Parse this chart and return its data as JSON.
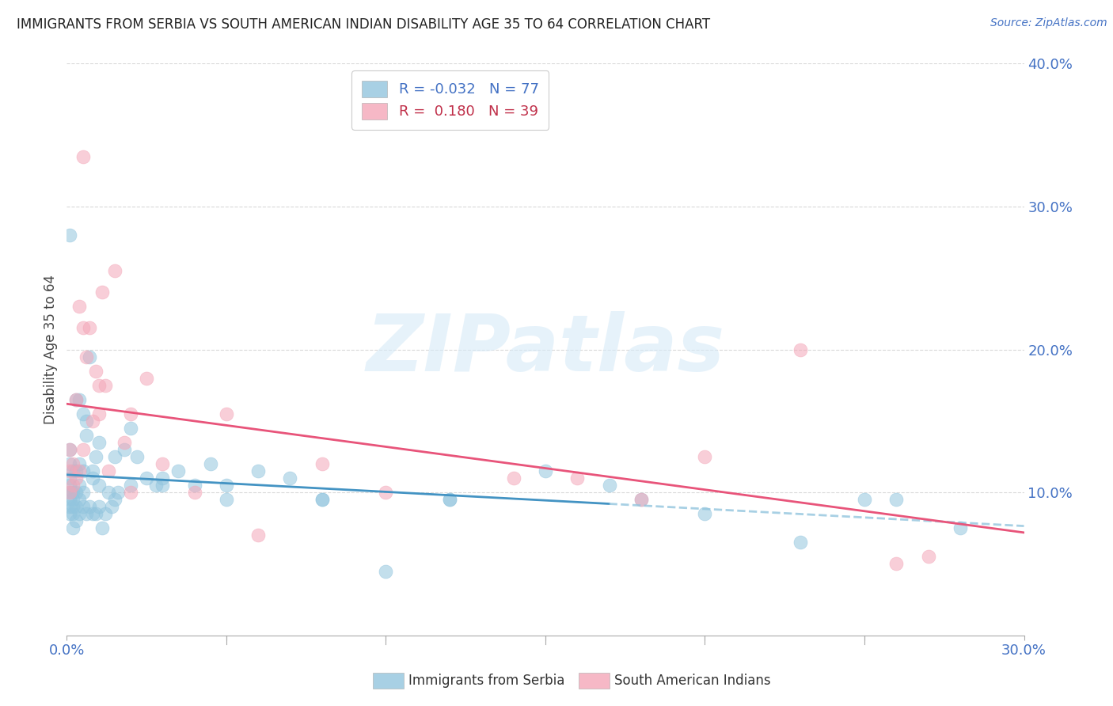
{
  "title": "IMMIGRANTS FROM SERBIA VS SOUTH AMERICAN INDIAN DISABILITY AGE 35 TO 64 CORRELATION CHART",
  "source": "Source: ZipAtlas.com",
  "ylabel": "Disability Age 35 to 64",
  "xlim": [
    0.0,
    0.3
  ],
  "ylim": [
    0.0,
    0.4
  ],
  "legend_label1": "Immigrants from Serbia",
  "legend_label2": "South American Indians",
  "serbia_color": "#92c5de",
  "sam_indian_color": "#f4a6b8",
  "serbia_line_color": "#4393c3",
  "sam_line_color": "#e8547a",
  "serbia_R": -0.032,
  "serbia_N": 77,
  "sam_R": 0.18,
  "sam_N": 39,
  "serbia_x": [
    0.001,
    0.001,
    0.001,
    0.001,
    0.001,
    0.001,
    0.001,
    0.001,
    0.002,
    0.002,
    0.002,
    0.002,
    0.002,
    0.003,
    0.003,
    0.003,
    0.003,
    0.004,
    0.004,
    0.004,
    0.004,
    0.005,
    0.005,
    0.005,
    0.006,
    0.006,
    0.007,
    0.007,
    0.008,
    0.008,
    0.009,
    0.009,
    0.01,
    0.01,
    0.011,
    0.012,
    0.013,
    0.014,
    0.015,
    0.016,
    0.018,
    0.02,
    0.022,
    0.025,
    0.028,
    0.03,
    0.035,
    0.04,
    0.045,
    0.05,
    0.06,
    0.07,
    0.08,
    0.1,
    0.12,
    0.15,
    0.17,
    0.2,
    0.23,
    0.26,
    0.002,
    0.003,
    0.004,
    0.005,
    0.006,
    0.008,
    0.01,
    0.015,
    0.02,
    0.03,
    0.05,
    0.08,
    0.12,
    0.18,
    0.25,
    0.28,
    0.001
  ],
  "serbia_y": [
    0.085,
    0.09,
    0.095,
    0.1,
    0.105,
    0.11,
    0.12,
    0.13,
    0.075,
    0.085,
    0.09,
    0.1,
    0.115,
    0.08,
    0.09,
    0.1,
    0.115,
    0.085,
    0.095,
    0.105,
    0.12,
    0.09,
    0.1,
    0.115,
    0.085,
    0.15,
    0.09,
    0.195,
    0.085,
    0.115,
    0.085,
    0.125,
    0.09,
    0.135,
    0.075,
    0.085,
    0.1,
    0.09,
    0.095,
    0.1,
    0.13,
    0.145,
    0.125,
    0.11,
    0.105,
    0.11,
    0.115,
    0.105,
    0.12,
    0.095,
    0.115,
    0.11,
    0.095,
    0.045,
    0.095,
    0.115,
    0.105,
    0.085,
    0.065,
    0.095,
    0.095,
    0.165,
    0.165,
    0.155,
    0.14,
    0.11,
    0.105,
    0.125,
    0.105,
    0.105,
    0.105,
    0.095,
    0.095,
    0.095,
    0.095,
    0.075,
    0.28
  ],
  "sam_x": [
    0.001,
    0.001,
    0.001,
    0.002,
    0.002,
    0.003,
    0.003,
    0.004,
    0.004,
    0.005,
    0.005,
    0.006,
    0.007,
    0.008,
    0.009,
    0.01,
    0.011,
    0.012,
    0.013,
    0.015,
    0.018,
    0.02,
    0.025,
    0.03,
    0.04,
    0.05,
    0.06,
    0.08,
    0.1,
    0.14,
    0.16,
    0.18,
    0.2,
    0.23,
    0.26,
    0.27,
    0.005,
    0.01,
    0.02
  ],
  "sam_y": [
    0.1,
    0.115,
    0.13,
    0.105,
    0.12,
    0.11,
    0.165,
    0.115,
    0.23,
    0.13,
    0.215,
    0.195,
    0.215,
    0.15,
    0.185,
    0.155,
    0.24,
    0.175,
    0.115,
    0.255,
    0.135,
    0.155,
    0.18,
    0.12,
    0.1,
    0.155,
    0.07,
    0.12,
    0.1,
    0.11,
    0.11,
    0.095,
    0.125,
    0.2,
    0.05,
    0.055,
    0.335,
    0.175,
    0.1
  ],
  "watermark": "ZIPatlas",
  "bg_color": "#ffffff",
  "grid_color": "#d0d0d0",
  "title_fontsize": 12,
  "axis_label_color": "#4472c4",
  "legend_text_color1": "#4472c4",
  "legend_text_color2": "#c0304a"
}
